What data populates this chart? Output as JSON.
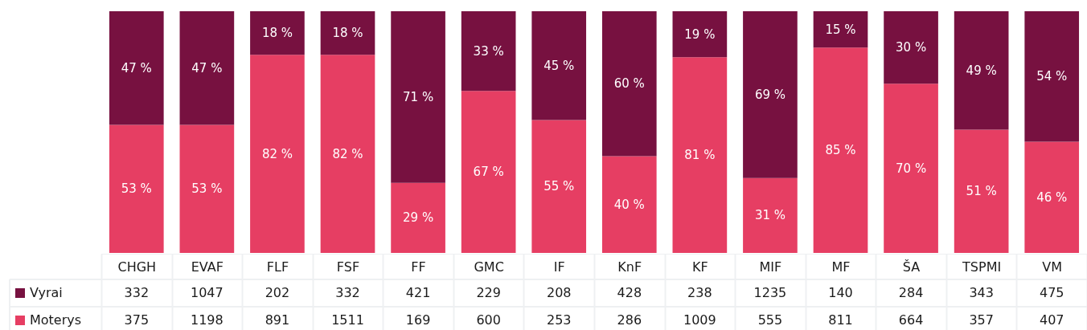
{
  "chart_data": [
    {
      "type": "bar",
      "stacked": true,
      "categories": [
        null,
        null,
        null,
        null,
        null,
        null,
        null,
        null,
        null,
        null,
        null,
        null,
        null,
        null
      ],
      "series": [
        {
          "color": "#e63e63",
          "values": [
            53,
            53,
            82,
            82,
            29,
            67,
            55,
            40,
            81,
            31,
            85,
            70,
            51,
            46
          ],
          "value_labels": [
            "53 %",
            "53 %",
            "82 %",
            "82 %",
            "29 %",
            "67 %",
            "55 %",
            "40 %",
            "81 %",
            "31 %",
            "85 %",
            "70 %",
            "51 %",
            "46 %"
          ]
        },
        {
          "color": "#771140",
          "values": [
            47,
            47,
            18,
            18,
            71,
            33,
            45,
            60,
            19,
            69,
            15,
            30,
            49,
            54
          ],
          "value_labels": [
            "47 %",
            "47 %",
            "18 %",
            "18 %",
            "71 %",
            "33 %",
            "45 %",
            "60 %",
            "19 %",
            "69 %",
            "15 %",
            "30 %",
            "49 %",
            "54 %"
          ]
        }
      ]
    },
    {
      "type": "other",
      "data_labels": true,
      "categories": [
        "CHGH",
        "EVAF",
        "FLF",
        "FSF",
        "FF",
        "GMC",
        "IF",
        "KnF",
        "KF",
        "MIF",
        "MF",
        "ŠA",
        "TSPMI",
        "VM"
      ],
      "series": [
        {
          "name": "Vyrai",
          "values": [
            332,
            1047,
            202,
            332,
            421,
            229,
            208,
            428,
            238,
            1235,
            140,
            284,
            343,
            475
          ]
        },
        {
          "name": "Moterys",
          "values": [
            375,
            1198,
            891,
            1511,
            169,
            600,
            253,
            286,
            1009,
            555,
            811,
            664,
            357,
            407
          ]
        }
      ]
    }
  ]
}
